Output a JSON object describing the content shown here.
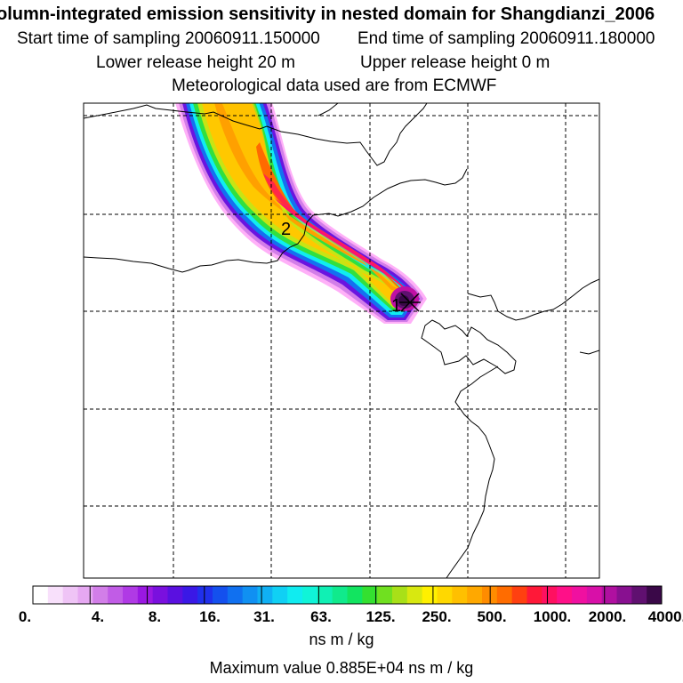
{
  "title": "olumn-integrated emission sensitivity in nested domain for Shangdianzi_2006",
  "sampling": {
    "start": "Start time of sampling 20060911.150000",
    "end": "End time of sampling 20060911.180000"
  },
  "release": {
    "lower": "Lower release height   20 m",
    "upper": "Upper release height    0 m"
  },
  "met_source": "Meteorological data used are from ECMWF",
  "map": {
    "contour_labels": [
      "2",
      "1"
    ],
    "marker": "receptor-cross"
  },
  "colorbar": {
    "tick_labels": [
      "0.",
      "4.",
      "8.",
      "16.",
      "31.",
      "63.",
      "125.",
      "250.",
      "500.",
      "1000.",
      "2000.",
      "4000."
    ],
    "colors": [
      "#ffffff",
      "#f8e0fb",
      "#efc4f6",
      "#e6a8f2",
      "#d27ee8",
      "#c15ce6",
      "#b03ae5",
      "#9a18e2",
      "#7a10de",
      "#5a10e0",
      "#3a18e6",
      "#2030ec",
      "#1450ee",
      "#1070f0",
      "#1090f2",
      "#10b0f4",
      "#10d0f4",
      "#10ecf0",
      "#10f4d8",
      "#10f0b4",
      "#10ea8c",
      "#12e460",
      "#34e030",
      "#70e020",
      "#a8e018",
      "#d8e810",
      "#fff000",
      "#ffd800",
      "#ffc000",
      "#ffa800",
      "#ff8c00",
      "#ff6c00",
      "#ff4010",
      "#ff1838",
      "#ff1060",
      "#ff1088",
      "#f010a0",
      "#d810a8",
      "#b010a0",
      "#881090",
      "#601070",
      "#3a0848"
    ],
    "units": "ns m / kg"
  },
  "max_value": "Maximum value  0.885E+04 ns m / kg"
}
